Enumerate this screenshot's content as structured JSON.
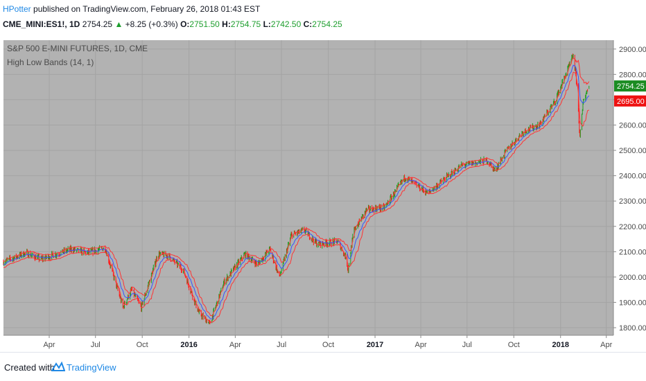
{
  "header": {
    "author": "HPotter",
    "published_text": "published on TradingView.com, February 26, 2018 01:43 EST",
    "symbol": "CME_MINI:ES1!, 1D",
    "last": "2754.25",
    "change": "+8.25 (+0.3%)",
    "o_label": "O:",
    "o_value": "2751.50",
    "h_label": "H:",
    "h_value": "2754.75",
    "l_label": "L:",
    "l_value": "2742.50",
    "c_label": "C:",
    "c_value": "2754.25"
  },
  "legend": {
    "title": "S&P 500 E-MINI FUTURES, 1D, CME",
    "indicator": "High Low Bands (14, 1)"
  },
  "footer": {
    "created_with": "Created with",
    "brand": "TradingView"
  },
  "colors": {
    "plot_bg": "#b2b2b2",
    "up": "#1e9e1e",
    "down": "#ff1a1a",
    "band_upper": "#ff3333",
    "band_lower": "#ff3333",
    "band_mid": "#3355ff",
    "last_price_bg": "#1b8c22",
    "band_price_bg": "#ee1111"
  },
  "chart_data": {
    "type": "candlestick",
    "x_ticks": [
      "Apr",
      "Jul",
      "Oct",
      "2016",
      "Apr",
      "Jul",
      "Oct",
      "2017",
      "Apr",
      "Jul",
      "Oct",
      "2018",
      "Apr"
    ],
    "x_range": [
      "2015-01-01",
      "2018-04-15"
    ],
    "y_ticks": [
      1800,
      1900,
      2000,
      2100,
      2200,
      2300,
      2400,
      2500,
      2600,
      2700,
      2800,
      2900
    ],
    "ylim": [
      1770,
      2935
    ],
    "price_labels": [
      {
        "label": "2754.25",
        "value": 2754.25,
        "kind": "last"
      },
      {
        "label": "2695.00",
        "value": 2695.0,
        "kind": "band"
      }
    ],
    "anchors": [
      {
        "date": "2015-01-01",
        "close": 2060
      },
      {
        "date": "2015-02-15",
        "close": 2095
      },
      {
        "date": "2015-03-15",
        "close": 2070
      },
      {
        "date": "2015-05-15",
        "close": 2110
      },
      {
        "date": "2015-06-15",
        "close": 2095
      },
      {
        "date": "2015-07-20",
        "close": 2115
      },
      {
        "date": "2015-08-24",
        "close": 1880
      },
      {
        "date": "2015-09-10",
        "close": 1950
      },
      {
        "date": "2015-09-29",
        "close": 1880
      },
      {
        "date": "2015-11-01",
        "close": 2090
      },
      {
        "date": "2015-11-20",
        "close": 2085
      },
      {
        "date": "2015-12-20",
        "close": 2030
      },
      {
        "date": "2016-01-20",
        "close": 1860
      },
      {
        "date": "2016-02-11",
        "close": 1815
      },
      {
        "date": "2016-03-10",
        "close": 1980
      },
      {
        "date": "2016-04-20",
        "close": 2090
      },
      {
        "date": "2016-05-15",
        "close": 2050
      },
      {
        "date": "2016-06-08",
        "close": 2110
      },
      {
        "date": "2016-06-27",
        "close": 2000
      },
      {
        "date": "2016-07-20",
        "close": 2165
      },
      {
        "date": "2016-08-15",
        "close": 2185
      },
      {
        "date": "2016-09-09",
        "close": 2130
      },
      {
        "date": "2016-10-20",
        "close": 2140
      },
      {
        "date": "2016-11-04",
        "close": 2080
      },
      {
        "date": "2016-11-09",
        "close": 2030
      },
      {
        "date": "2016-11-20",
        "close": 2180
      },
      {
        "date": "2016-12-15",
        "close": 2265
      },
      {
        "date": "2017-01-20",
        "close": 2275
      },
      {
        "date": "2017-03-01",
        "close": 2395
      },
      {
        "date": "2017-04-15",
        "close": 2330
      },
      {
        "date": "2017-05-20",
        "close": 2390
      },
      {
        "date": "2017-06-20",
        "close": 2440
      },
      {
        "date": "2017-08-10",
        "close": 2460
      },
      {
        "date": "2017-08-25",
        "close": 2420
      },
      {
        "date": "2017-09-15",
        "close": 2495
      },
      {
        "date": "2017-10-20",
        "close": 2575
      },
      {
        "date": "2017-11-20",
        "close": 2600
      },
      {
        "date": "2017-12-20",
        "close": 2690
      },
      {
        "date": "2018-01-26",
        "close": 2875
      },
      {
        "date": "2018-02-02",
        "close": 2760
      },
      {
        "date": "2018-02-08",
        "close": 2550
      },
      {
        "date": "2018-02-15",
        "close": 2700
      },
      {
        "date": "2018-02-26",
        "close": 2754
      }
    ],
    "bands": {
      "period": 14,
      "multiplier": 1,
      "upper": "red",
      "mid": "blue",
      "lower": "red"
    },
    "last_bar": {
      "open": 2751.5,
      "high": 2754.75,
      "low": 2742.5,
      "close": 2754.25
    }
  }
}
